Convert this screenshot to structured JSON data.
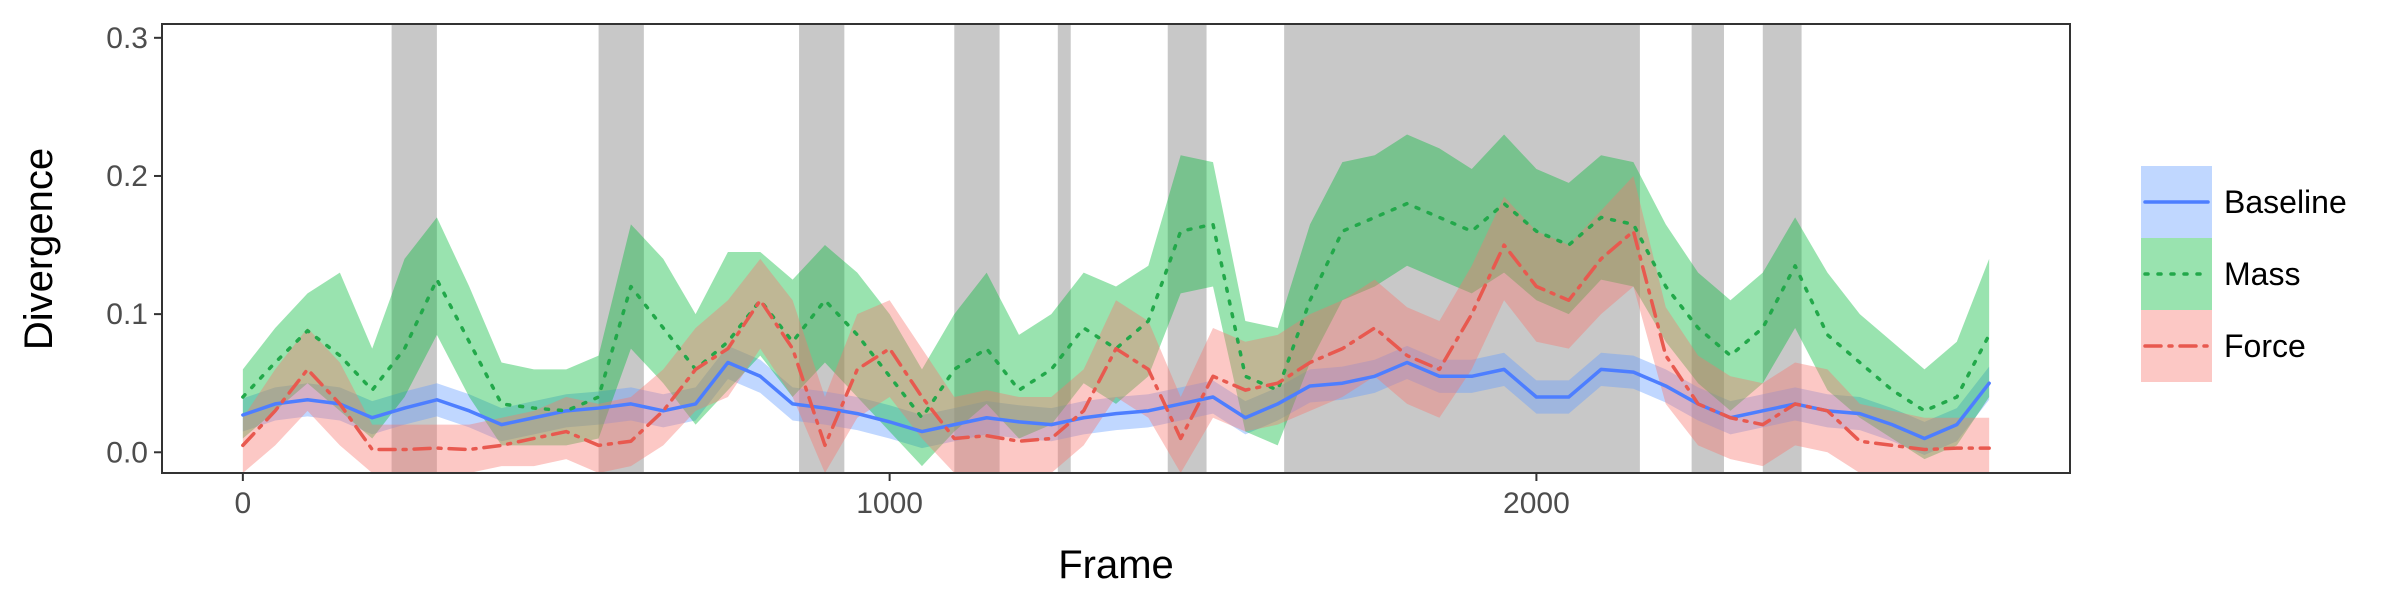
{
  "chart_data": {
    "type": "line",
    "xlabel": "Frame",
    "ylabel": "Divergence",
    "xlim": [
      -125,
      2825
    ],
    "ylim": [
      -0.015,
      0.31
    ],
    "x_ticks": [
      0,
      1000,
      2000
    ],
    "y_ticks": [
      0.0,
      0.1,
      0.2,
      0.3
    ],
    "x_tick_labels": [
      "0",
      "1000",
      "2000"
    ],
    "y_tick_labels": [
      "0.0",
      "0.1",
      "0.2",
      "0.3"
    ],
    "grid": false,
    "legend_position": "right",
    "shaded_regions": [
      [
        230,
        300
      ],
      [
        550,
        620
      ],
      [
        860,
        930
      ],
      [
        1100,
        1170
      ],
      [
        1260,
        1280
      ],
      [
        1430,
        1490
      ],
      [
        1610,
        2160
      ],
      [
        2240,
        2290
      ],
      [
        2350,
        2410
      ]
    ],
    "x": [
      0,
      50,
      100,
      150,
      200,
      250,
      300,
      350,
      400,
      450,
      500,
      550,
      600,
      650,
      700,
      750,
      800,
      850,
      900,
      950,
      1000,
      1050,
      1100,
      1150,
      1200,
      1250,
      1300,
      1350,
      1400,
      1450,
      1500,
      1550,
      1600,
      1650,
      1700,
      1750,
      1800,
      1850,
      1900,
      1950,
      2000,
      2050,
      2100,
      2150,
      2200,
      2250,
      2300,
      2350,
      2400,
      2450,
      2500,
      2550,
      2600,
      2650,
      2700
    ],
    "series": [
      {
        "name": "Baseline",
        "color": "#619CFF",
        "line_color": "#4d7eff",
        "dash": "solid",
        "y": [
          0.027,
          0.035,
          0.038,
          0.035,
          0.025,
          0.032,
          0.038,
          0.03,
          0.02,
          0.025,
          0.03,
          0.032,
          0.035,
          0.03,
          0.035,
          0.065,
          0.055,
          0.035,
          0.032,
          0.028,
          0.022,
          0.015,
          0.02,
          0.025,
          0.022,
          0.02,
          0.025,
          0.028,
          0.03,
          0.035,
          0.04,
          0.025,
          0.035,
          0.048,
          0.05,
          0.055,
          0.065,
          0.055,
          0.055,
          0.06,
          0.04,
          0.04,
          0.06,
          0.058,
          0.048,
          0.035,
          0.025,
          0.03,
          0.035,
          0.03,
          0.028,
          0.02,
          0.01,
          0.02,
          0.05
        ],
        "lower": [
          0.015,
          0.023,
          0.026,
          0.023,
          0.013,
          0.02,
          0.026,
          0.018,
          0.008,
          0.013,
          0.018,
          0.02,
          0.023,
          0.018,
          0.023,
          0.053,
          0.043,
          0.023,
          0.02,
          0.016,
          0.01,
          0.003,
          0.008,
          0.013,
          0.01,
          0.008,
          0.013,
          0.016,
          0.018,
          0.023,
          0.028,
          0.013,
          0.023,
          0.036,
          0.038,
          0.043,
          0.053,
          0.043,
          0.043,
          0.048,
          0.028,
          0.028,
          0.048,
          0.046,
          0.036,
          0.023,
          0.013,
          0.018,
          0.023,
          0.018,
          0.016,
          0.008,
          -0.002,
          0.008,
          0.038
        ],
        "upper": [
          0.039,
          0.047,
          0.05,
          0.047,
          0.037,
          0.044,
          0.05,
          0.042,
          0.032,
          0.037,
          0.042,
          0.044,
          0.047,
          0.042,
          0.047,
          0.077,
          0.067,
          0.047,
          0.044,
          0.04,
          0.034,
          0.027,
          0.032,
          0.037,
          0.034,
          0.032,
          0.037,
          0.04,
          0.042,
          0.047,
          0.052,
          0.037,
          0.047,
          0.06,
          0.062,
          0.067,
          0.077,
          0.067,
          0.067,
          0.072,
          0.052,
          0.052,
          0.072,
          0.07,
          0.06,
          0.047,
          0.037,
          0.042,
          0.047,
          0.042,
          0.04,
          0.032,
          0.022,
          0.032,
          0.062
        ]
      },
      {
        "name": "Mass",
        "color": "#00BA38",
        "line_color": "#22a84a",
        "dash": "dotted",
        "y": [
          0.04,
          0.065,
          0.088,
          0.07,
          0.045,
          0.075,
          0.125,
          0.08,
          0.035,
          0.032,
          0.03,
          0.04,
          0.12,
          0.09,
          0.06,
          0.08,
          0.11,
          0.08,
          0.11,
          0.085,
          0.055,
          0.025,
          0.06,
          0.075,
          0.045,
          0.06,
          0.09,
          0.075,
          0.095,
          0.16,
          0.165,
          0.055,
          0.045,
          0.11,
          0.16,
          0.17,
          0.18,
          0.17,
          0.16,
          0.18,
          0.16,
          0.15,
          0.17,
          0.165,
          0.12,
          0.09,
          0.07,
          0.09,
          0.135,
          0.085,
          0.065,
          0.045,
          0.03,
          0.04,
          0.085
        ],
        "lower": [
          0.01,
          0.03,
          0.05,
          0.03,
          0.01,
          0.04,
          0.085,
          0.04,
          0.005,
          0.005,
          0.005,
          0.01,
          0.075,
          0.05,
          0.02,
          0.045,
          0.07,
          0.04,
          0.065,
          0.04,
          0.015,
          -0.01,
          0.015,
          0.035,
          0.01,
          0.02,
          0.05,
          0.035,
          0.055,
          0.115,
          0.12,
          0.015,
          0.005,
          0.065,
          0.11,
          0.12,
          0.135,
          0.125,
          0.115,
          0.13,
          0.11,
          0.1,
          0.125,
          0.12,
          0.08,
          0.05,
          0.03,
          0.05,
          0.09,
          0.045,
          0.025,
          0.01,
          -0.005,
          0.005,
          0.04
        ],
        "upper": [
          0.06,
          0.09,
          0.115,
          0.13,
          0.075,
          0.14,
          0.17,
          0.12,
          0.065,
          0.06,
          0.06,
          0.07,
          0.165,
          0.14,
          0.1,
          0.145,
          0.145,
          0.125,
          0.15,
          0.13,
          0.1,
          0.06,
          0.1,
          0.13,
          0.085,
          0.1,
          0.13,
          0.12,
          0.135,
          0.215,
          0.21,
          0.095,
          0.09,
          0.165,
          0.21,
          0.215,
          0.23,
          0.22,
          0.205,
          0.23,
          0.205,
          0.195,
          0.215,
          0.21,
          0.165,
          0.13,
          0.11,
          0.13,
          0.17,
          0.13,
          0.1,
          0.08,
          0.06,
          0.08,
          0.14
        ]
      },
      {
        "name": "Force",
        "color": "#F8766D",
        "line_color": "#e8594f",
        "dash": "dashdot",
        "y": [
          0.005,
          0.03,
          0.06,
          0.035,
          0.002,
          0.002,
          0.003,
          0.002,
          0.005,
          0.01,
          0.015,
          0.005,
          0.008,
          0.03,
          0.06,
          0.075,
          0.11,
          0.075,
          0.005,
          0.06,
          0.075,
          0.04,
          0.01,
          0.012,
          0.008,
          0.01,
          0.03,
          0.075,
          0.06,
          0.01,
          0.055,
          0.045,
          0.05,
          0.065,
          0.075,
          0.09,
          0.07,
          0.06,
          0.1,
          0.15,
          0.12,
          0.11,
          0.14,
          0.16,
          0.07,
          0.035,
          0.025,
          0.02,
          0.035,
          0.03,
          0.008,
          0.005,
          0.002,
          0.003,
          0.003
        ],
        "lower": [
          -0.015,
          0.005,
          0.03,
          0.005,
          -0.015,
          -0.015,
          -0.015,
          -0.015,
          -0.01,
          -0.01,
          -0.005,
          -0.015,
          -0.01,
          0.005,
          0.03,
          0.04,
          0.075,
          0.04,
          -0.015,
          0.025,
          0.04,
          0.01,
          -0.015,
          -0.015,
          -0.015,
          -0.015,
          0.005,
          0.04,
          0.025,
          -0.015,
          0.025,
          0.015,
          0.02,
          0.03,
          0.04,
          0.055,
          0.035,
          0.025,
          0.06,
          0.11,
          0.08,
          0.075,
          0.1,
          0.12,
          0.035,
          0.005,
          -0.005,
          -0.01,
          0.005,
          0.0,
          -0.015,
          -0.015,
          -0.015,
          -0.015,
          -0.015
        ],
        "upper": [
          0.025,
          0.06,
          0.09,
          0.065,
          0.02,
          0.02,
          0.02,
          0.02,
          0.025,
          0.03,
          0.04,
          0.035,
          0.04,
          0.06,
          0.09,
          0.11,
          0.14,
          0.11,
          0.04,
          0.1,
          0.11,
          0.075,
          0.04,
          0.045,
          0.04,
          0.04,
          0.06,
          0.11,
          0.095,
          0.04,
          0.09,
          0.08,
          0.085,
          0.1,
          0.11,
          0.125,
          0.105,
          0.095,
          0.135,
          0.185,
          0.16,
          0.15,
          0.175,
          0.2,
          0.105,
          0.07,
          0.055,
          0.05,
          0.065,
          0.06,
          0.035,
          0.03,
          0.025,
          0.025,
          0.025
        ]
      }
    ]
  }
}
